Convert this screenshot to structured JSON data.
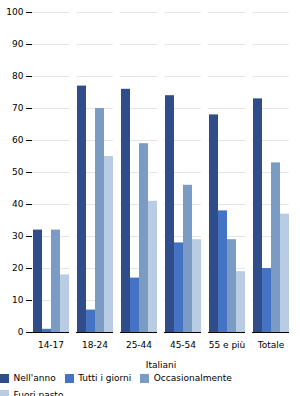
{
  "chart_data": {
    "type": "bar",
    "categories": [
      "14-17",
      "18-24",
      "25-44",
      "45-54",
      "55 e più",
      "Totale"
    ],
    "series": [
      {
        "name": "Nell'anno",
        "color": "#2E4D8A",
        "values": [
          32,
          77,
          76,
          74,
          68,
          73
        ]
      },
      {
        "name": "Tutti i giorni",
        "color": "#4472C4",
        "values": [
          1,
          7,
          17,
          28,
          38,
          20
        ]
      },
      {
        "name": "Occasionalmente",
        "color": "#7A9CC4",
        "values": [
          32,
          70,
          59,
          46,
          29,
          53
        ]
      },
      {
        "name": "Fuori pasto",
        "color": "#B8CCE4",
        "values": [
          18,
          55,
          41,
          29,
          19,
          37
        ]
      }
    ],
    "xlabel": "Italiani",
    "ylim": [
      0,
      100
    ],
    "yticks": [
      0,
      10,
      20,
      30,
      40,
      50,
      60,
      70,
      80,
      90,
      100
    ],
    "grid": true,
    "legend": "bottom"
  }
}
